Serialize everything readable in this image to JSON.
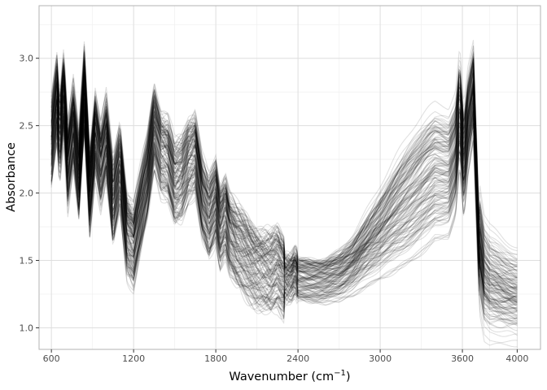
{
  "chart_data": {
    "type": "line",
    "title": "",
    "xlabel": "Wavenumber (cm",
    "xlabel_superscript": "−1",
    "xlabel_suffix": ")",
    "ylabel": "Absorbance",
    "xlim": [
      510,
      4170
    ],
    "ylim": [
      0.84,
      3.39
    ],
    "x_ticks": [
      600,
      1200,
      1800,
      2400,
      3000,
      3600,
      4000
    ],
    "x_tick_labels": [
      "600",
      "1200",
      "1800",
      "2400",
      "3000",
      "3600",
      "4000"
    ],
    "x_minor_ticks": [
      900,
      1500,
      2100,
      2700,
      3300,
      3800
    ],
    "y_ticks": [
      1.0,
      1.5,
      2.0,
      2.5,
      3.0
    ],
    "y_tick_labels": [
      "1.0",
      "1.5",
      "2.0",
      "2.5",
      "3.0"
    ],
    "y_minor_ticks": [
      1.25,
      1.75,
      2.25,
      2.75,
      3.25
    ],
    "grid": true,
    "legend": "none",
    "line_color": "#000000",
    "line_opacity": 0.12,
    "panel_border_color": "#b3b3b3",
    "grid_major_color": "#dedede",
    "grid_minor_color": "#eeeeee",
    "n_series": 160,
    "series_note_values": "representative spectrum (mean), individual spectra vary around it",
    "representative_spectrum": {
      "x": [
        600,
        640,
        660,
        690,
        720,
        760,
        800,
        840,
        880,
        920,
        960,
        1000,
        1050,
        1100,
        1150,
        1200,
        1250,
        1300,
        1350,
        1400,
        1450,
        1500,
        1550,
        1600,
        1650,
        1700,
        1750,
        1800,
        1830,
        1870,
        1900,
        1950,
        2000,
        2050,
        2100,
        2150,
        2200,
        2250,
        2300,
        2350,
        2380,
        2400,
        2500,
        2600,
        2700,
        2800,
        2900,
        3000,
        3100,
        3200,
        3300,
        3400,
        3500,
        3550,
        3580,
        3610,
        3640,
        3680,
        3720,
        3760,
        3800,
        3900,
        4000
      ],
      "y": [
        2.35,
        2.7,
        2.4,
        2.75,
        2.2,
        2.5,
        2.1,
        2.75,
        2.0,
        2.45,
        2.2,
        2.4,
        1.9,
        2.2,
        1.7,
        1.6,
        1.85,
        2.1,
        2.5,
        2.3,
        2.25,
        2.05,
        2.1,
        2.25,
        2.3,
        1.95,
        1.8,
        1.95,
        1.75,
        1.85,
        1.7,
        1.6,
        1.55,
        1.5,
        1.45,
        1.42,
        1.4,
        1.45,
        1.38,
        1.38,
        1.42,
        1.36,
        1.35,
        1.35,
        1.38,
        1.45,
        1.55,
        1.65,
        1.75,
        1.85,
        1.95,
        2.05,
        2.05,
        2.2,
        2.55,
        2.15,
        2.45,
        2.7,
        1.55,
        1.3,
        1.25,
        1.22,
        1.2
      ]
    }
  }
}
